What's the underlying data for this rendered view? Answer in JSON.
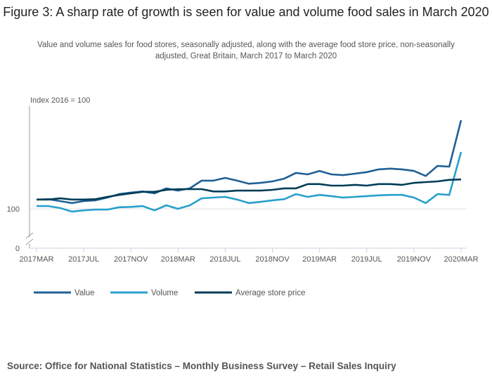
{
  "title": "Figure 3: A sharp rate of growth is seen for value and volume food sales in March 2020",
  "subtitle": "Value and volume sales for food stores, seasonally adjusted, along with the average food store price, non-seasonally adjusted, Great Britain, March 2017 to March 2020",
  "source": "Source: Office for National Statistics – Monthly Business Survey – Retail Sales Inquiry",
  "chart_data": {
    "type": "line",
    "title": "Figure 3: A sharp rate of growth is seen for value and volume food sales in March 2020",
    "ylabel": "Index 2016 = 100",
    "xlabel": "",
    "y_ticks": [
      "0",
      "100"
    ],
    "y_axis_break": true,
    "ylim": [
      95,
      127
    ],
    "grid": "horizontal at 100",
    "legend_position": "bottom-left",
    "x_tick_labels": [
      "2017MAR",
      "2017JUL",
      "2017NOV",
      "2018MAR",
      "2018JUL",
      "2018NOV",
      "2019MAR",
      "2019JUL",
      "2019NOV",
      "2020MAR"
    ],
    "x": [
      "2017MAR",
      "2017APR",
      "2017MAY",
      "2017JUN",
      "2017JUL",
      "2017AUG",
      "2017SEP",
      "2017OCT",
      "2017NOV",
      "2017DEC",
      "2018JAN",
      "2018FEB",
      "2018MAR",
      "2018APR",
      "2018MAY",
      "2018JUN",
      "2018JUL",
      "2018AUG",
      "2018SEP",
      "2018OCT",
      "2018NOV",
      "2018DEC",
      "2019JAN",
      "2019FEB",
      "2019MAR",
      "2019APR",
      "2019MAY",
      "2019JUN",
      "2019JUL",
      "2019AUG",
      "2019SEP",
      "2019OCT",
      "2019NOV",
      "2019DEC",
      "2020JAN",
      "2020FEB",
      "2020MAR"
    ],
    "series": [
      {
        "name": "Value",
        "color": "#206095",
        "values": [
          102.4,
          102.5,
          102.0,
          101.5,
          102.0,
          102.2,
          102.9,
          103.8,
          104.2,
          104.5,
          104.0,
          105.3,
          104.7,
          105.3,
          107.3,
          107.3,
          108.0,
          107.3,
          106.5,
          106.7,
          107.1,
          107.8,
          109.3,
          108.9,
          109.8,
          108.9,
          108.7,
          109.1,
          109.5,
          110.2,
          110.4,
          110.2,
          109.8,
          108.5,
          111.1,
          110.9,
          122.9
        ]
      },
      {
        "name": "Volume",
        "color": "#27a0cc",
        "values": [
          100.7,
          100.7,
          100.2,
          99.3,
          99.6,
          99.8,
          99.8,
          100.4,
          100.5,
          100.7,
          99.6,
          100.9,
          100.0,
          100.9,
          102.7,
          102.9,
          103.1,
          102.4,
          101.5,
          101.8,
          102.2,
          102.5,
          103.8,
          103.1,
          103.6,
          103.3,
          102.9,
          103.1,
          103.3,
          103.5,
          103.6,
          103.6,
          102.9,
          101.5,
          103.8,
          103.6,
          114.7
        ]
      },
      {
        "name": "Average store price",
        "color": "#003c57",
        "values": [
          102.4,
          102.4,
          102.7,
          102.4,
          102.4,
          102.5,
          103.1,
          103.6,
          104.0,
          104.4,
          104.4,
          104.9,
          105.1,
          105.1,
          105.1,
          104.5,
          104.5,
          104.7,
          104.7,
          104.7,
          104.9,
          105.3,
          105.3,
          106.4,
          106.4,
          106.0,
          106.0,
          106.2,
          106.0,
          106.4,
          106.4,
          106.2,
          106.7,
          106.9,
          107.1,
          107.5,
          107.6
        ]
      }
    ]
  }
}
